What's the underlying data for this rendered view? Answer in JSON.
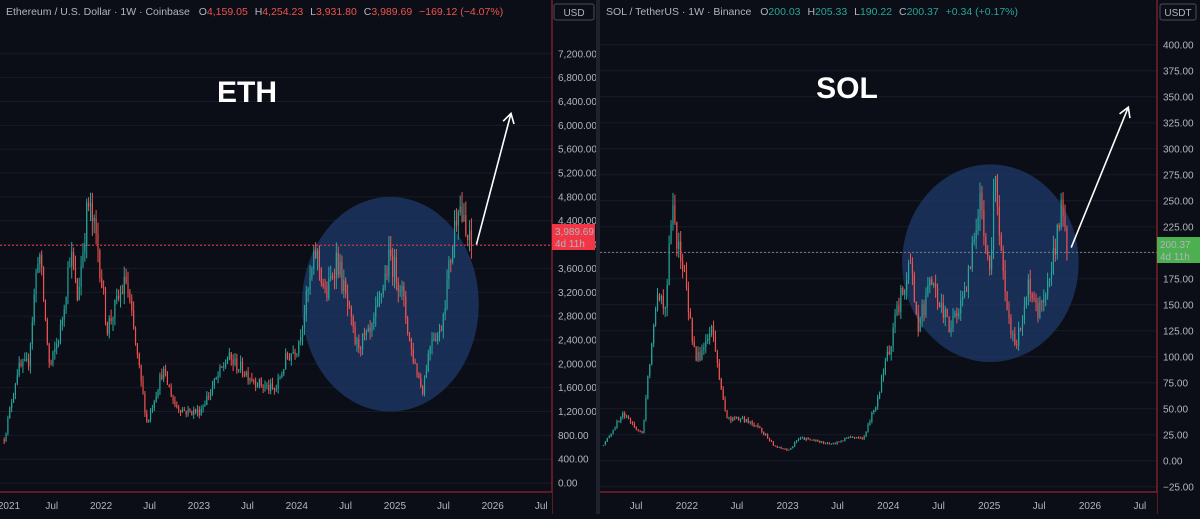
{
  "colors": {
    "background": "#0b0e17",
    "up": "#26a69a",
    "down": "#ef5350",
    "circle": "#1f3a6b",
    "grid": "#171b26",
    "axis_border": "#b22833"
  },
  "chart_data": [
    {
      "type": "candlestick",
      "symbol": "ETH",
      "header": {
        "name": "Ethereum / U.S. Dollar · 1W · Coinbase",
        "open_label": "O",
        "open": "4,159.05",
        "high_label": "H",
        "high": "4,254.23",
        "low_label": "L",
        "low": "3,931.80",
        "close_label": "C",
        "close": "3,989.69",
        "change": "−169.12 (−4.07%)"
      },
      "currency_label": "USD",
      "last_price": 3989.69,
      "last_price_label": "3,989.69",
      "countdown": "4d 11h",
      "ylim": [
        -150,
        7700
      ],
      "y_ticks": [
        0,
        400,
        800,
        1200,
        1600,
        2000,
        2400,
        2800,
        3200,
        3600,
        4000,
        4400,
        4800,
        5200,
        5600,
        6000,
        6400,
        6800,
        7200
      ],
      "y_tick_labels": [
        "0.00",
        "400.00",
        "800.00",
        "1,200.00",
        "1,600.00",
        "2,000.00",
        "2,400.00",
        "2,800.00",
        "3,200.00",
        "3,600.00",
        "4,000.00",
        "4,400.00",
        "4,800.00",
        "5,200.00",
        "5,600.00",
        "6,000.00",
        "6,400.00",
        "6,800.00",
        "7,200.00"
      ],
      "x_range": [
        "2020-12-20",
        "2026-08-10"
      ],
      "x_ticks": [
        {
          "date": "2021-01-01",
          "label": "2021"
        },
        {
          "date": "2021-07-01",
          "label": "Jul"
        },
        {
          "date": "2022-01-01",
          "label": "2022"
        },
        {
          "date": "2022-07-01",
          "label": "Jul"
        },
        {
          "date": "2023-01-01",
          "label": "2023"
        },
        {
          "date": "2023-07-01",
          "label": "Jul"
        },
        {
          "date": "2024-01-01",
          "label": "2024"
        },
        {
          "date": "2024-07-01",
          "label": "Jul"
        },
        {
          "date": "2025-01-01",
          "label": "2025"
        },
        {
          "date": "2025-07-01",
          "label": "Jul"
        },
        {
          "date": "2026-01-01",
          "label": "2026"
        },
        {
          "date": "2026-07-01",
          "label": "Jul"
        }
      ],
      "price_path": [
        [
          "2021-01-01",
          730
        ],
        [
          "2021-02-20",
          1900
        ],
        [
          "2021-04-01",
          2000
        ],
        [
          "2021-05-10",
          4000
        ],
        [
          "2021-06-20",
          1900
        ],
        [
          "2021-08-01",
          2600
        ],
        [
          "2021-09-05",
          3900
        ],
        [
          "2021-10-01",
          3100
        ],
        [
          "2021-11-10",
          4700
        ],
        [
          "2021-12-15",
          4000
        ],
        [
          "2022-01-20",
          2600
        ],
        [
          "2022-04-01",
          3400
        ],
        [
          "2022-06-18",
          1000
        ],
        [
          "2022-08-15",
          1900
        ],
        [
          "2022-10-01",
          1300
        ],
        [
          "2022-11-10",
          1200
        ],
        [
          "2022-12-31",
          1200
        ],
        [
          "2023-04-15",
          2100
        ],
        [
          "2023-08-15",
          1650
        ],
        [
          "2023-10-10",
          1550
        ],
        [
          "2023-11-20",
          2100
        ],
        [
          "2023-12-31",
          2300
        ],
        [
          "2024-03-10",
          3900
        ],
        [
          "2024-04-15",
          3100
        ],
        [
          "2024-05-25",
          3800
        ],
        [
          "2024-08-05",
          2300
        ],
        [
          "2024-10-01",
          2500
        ],
        [
          "2024-12-10",
          3800
        ],
        [
          "2025-01-20",
          3300
        ],
        [
          "2025-03-01",
          2200
        ],
        [
          "2025-04-10",
          1550
        ],
        [
          "2025-05-15",
          2500
        ],
        [
          "2025-06-15",
          2500
        ],
        [
          "2025-07-25",
          3800
        ],
        [
          "2025-08-22",
          4800
        ],
        [
          "2025-09-20",
          4100
        ],
        [
          "2025-10-12",
          3990
        ]
      ],
      "circle": {
        "center": [
          "2024-12-15",
          3000
        ],
        "radius_x_days": 330,
        "radius_y": 1800
      },
      "arrow": {
        "from": [
          "2025-11-01",
          4000
        ],
        "to": [
          "2026-03-10",
          6200
        ]
      },
      "label": "ETH"
    },
    {
      "type": "candlestick",
      "symbol": "SOL",
      "header": {
        "name": "SOL / TetherUS · 1W · Binance",
        "open_label": "O",
        "open": "200.03",
        "high_label": "H",
        "high": "205.33",
        "low_label": "L",
        "low": "190.22",
        "close_label": "C",
        "close": "200.37",
        "change": "+0.34 (+0.17%)"
      },
      "currency_label": "USDT",
      "last_price": 200.37,
      "last_price_label": "200.37",
      "countdown": "4d 11h",
      "ylim": [
        -30,
        420
      ],
      "y_ticks": [
        -25,
        0,
        25,
        50,
        75,
        100,
        125,
        150,
        175,
        200,
        225,
        250,
        275,
        300,
        325,
        350,
        375,
        400
      ],
      "y_tick_labels": [
        "−25.00",
        "0.00",
        "25.00",
        "50.00",
        "75.00",
        "100.00",
        "125.00",
        "150.00",
        "175.00",
        "200.00",
        "225.00",
        "250.00",
        "275.00",
        "300.00",
        "325.00",
        "350.00",
        "375.00",
        "400.00"
      ],
      "x_range": [
        "2021-02-20",
        "2026-09-01"
      ],
      "x_ticks": [
        {
          "date": "2021-07-01",
          "label": "Jul"
        },
        {
          "date": "2022-01-01",
          "label": "2022"
        },
        {
          "date": "2022-07-01",
          "label": "Jul"
        },
        {
          "date": "2023-01-01",
          "label": "2023"
        },
        {
          "date": "2023-07-01",
          "label": "Jul"
        },
        {
          "date": "2024-01-01",
          "label": "2024"
        },
        {
          "date": "2024-07-01",
          "label": "Jul"
        },
        {
          "date": "2025-01-01",
          "label": "2025"
        },
        {
          "date": "2025-07-01",
          "label": "Jul"
        },
        {
          "date": "2026-01-01",
          "label": "2026"
        },
        {
          "date": "2026-07-01",
          "label": "Jul"
        }
      ],
      "price_path": [
        [
          "2021-03-01",
          15
        ],
        [
          "2021-05-10",
          45
        ],
        [
          "2021-07-20",
          25
        ],
        [
          "2021-09-10",
          165
        ],
        [
          "2021-10-10",
          150
        ],
        [
          "2021-11-06",
          240
        ],
        [
          "2021-12-20",
          175
        ],
        [
          "2022-01-30",
          95
        ],
        [
          "2022-03-30",
          125
        ],
        [
          "2022-05-20",
          40
        ],
        [
          "2022-07-15",
          40
        ],
        [
          "2022-09-15",
          33
        ],
        [
          "2022-11-10",
          14
        ],
        [
          "2022-12-31",
          10
        ],
        [
          "2023-02-10",
          22
        ],
        [
          "2023-06-10",
          16
        ],
        [
          "2023-08-10",
          23
        ],
        [
          "2023-10-01",
          22
        ],
        [
          "2023-11-20",
          60
        ],
        [
          "2023-12-25",
          100
        ],
        [
          "2024-03-15",
          195
        ],
        [
          "2024-04-15",
          130
        ],
        [
          "2024-06-01",
          170
        ],
        [
          "2024-08-05",
          130
        ],
        [
          "2024-10-01",
          155
        ],
        [
          "2024-11-22",
          250
        ],
        [
          "2024-12-31",
          190
        ],
        [
          "2025-01-19",
          270
        ],
        [
          "2025-03-01",
          140
        ],
        [
          "2025-04-07",
          110
        ],
        [
          "2025-05-15",
          170
        ],
        [
          "2025-06-20",
          140
        ],
        [
          "2025-08-01",
          175
        ],
        [
          "2025-09-15",
          240
        ],
        [
          "2025-10-12",
          200
        ]
      ],
      "circle": {
        "center": [
          "2025-01-05",
          190
        ],
        "radius_x_days": 320,
        "radius_y": 95
      },
      "arrow": {
        "from": [
          "2025-10-25",
          205
        ],
        "to": [
          "2026-05-20",
          340
        ]
      },
      "label": "SOL"
    }
  ]
}
